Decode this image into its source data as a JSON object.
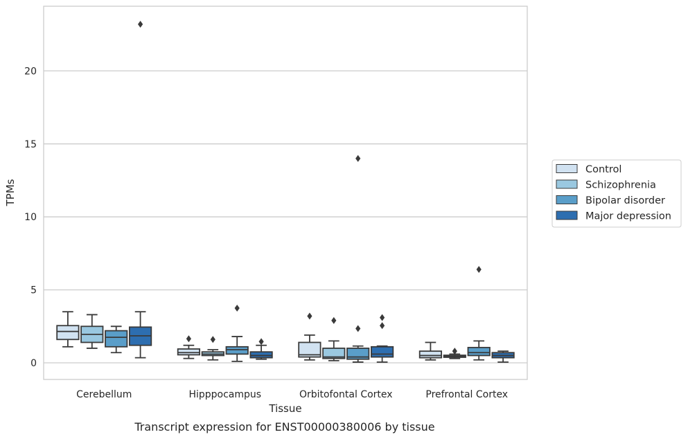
{
  "chart_data": {
    "type": "box",
    "title": "",
    "caption": "Transcript expression for ENST00000380006 by tissue",
    "xlabel": "Tissue",
    "ylabel": "TPMs",
    "ylim": [
      -1.1,
      24.5
    ],
    "yticks": [
      0,
      5,
      10,
      15,
      20
    ],
    "grid": "horizontal",
    "legend_position": "right",
    "categories": [
      "Cerebellum",
      "Hipppocampus",
      "Orbitofontal Cortex",
      "Prefrontal Cortex"
    ],
    "series": [
      {
        "name": "Control",
        "color": "#d1e2f1",
        "boxes": [
          {
            "whislo": 1.1,
            "q1": 1.6,
            "med": 2.15,
            "q3": 2.55,
            "whishi": 3.5,
            "fliers": []
          },
          {
            "whislo": 0.3,
            "q1": 0.55,
            "med": 0.7,
            "q3": 0.95,
            "whishi": 1.2,
            "fliers": [
              1.65
            ]
          },
          {
            "whislo": 0.2,
            "q1": 0.4,
            "med": 0.55,
            "q3": 1.4,
            "whishi": 1.9,
            "fliers": [
              3.2
            ]
          },
          {
            "whislo": 0.2,
            "q1": 0.35,
            "med": 0.5,
            "q3": 0.8,
            "whishi": 1.4,
            "fliers": []
          }
        ]
      },
      {
        "name": "Schizophrenia",
        "color": "#9ac8e0",
        "boxes": [
          {
            "whislo": 1.0,
            "q1": 1.4,
            "med": 1.95,
            "q3": 2.5,
            "whishi": 3.3,
            "fliers": []
          },
          {
            "whislo": 0.2,
            "q1": 0.5,
            "med": 0.6,
            "q3": 0.75,
            "whishi": 0.9,
            "fliers": [
              1.6
            ]
          },
          {
            "whislo": 0.15,
            "q1": 0.3,
            "med": 0.4,
            "q3": 1.0,
            "whishi": 1.5,
            "fliers": [
              2.9
            ]
          },
          {
            "whislo": 0.3,
            "q1": 0.38,
            "med": 0.45,
            "q3": 0.52,
            "whishi": 0.6,
            "fliers": [
              0.8
            ]
          }
        ]
      },
      {
        "name": "Bipolar disorder",
        "color": "#5a9ec9",
        "boxes": [
          {
            "whislo": 0.7,
            "q1": 1.1,
            "med": 1.75,
            "q3": 2.2,
            "whishi": 2.5,
            "fliers": []
          },
          {
            "whislo": 0.1,
            "q1": 0.6,
            "med": 0.9,
            "q3": 1.1,
            "whishi": 1.8,
            "fliers": [
              3.75
            ]
          },
          {
            "whislo": 0.05,
            "q1": 0.25,
            "med": 0.4,
            "q3": 1.0,
            "whishi": 1.15,
            "fliers": [
              2.35,
              14.0
            ]
          },
          {
            "whislo": 0.2,
            "q1": 0.5,
            "med": 0.7,
            "q3": 1.05,
            "whishi": 1.5,
            "fliers": [
              6.4
            ]
          }
        ]
      },
      {
        "name": "Major depression",
        "color": "#2d6eb0",
        "boxes": [
          {
            "whislo": 0.35,
            "q1": 1.2,
            "med": 1.85,
            "q3": 2.45,
            "whishi": 3.5,
            "fliers": [
              23.2
            ]
          },
          {
            "whislo": 0.25,
            "q1": 0.35,
            "med": 0.5,
            "q3": 0.75,
            "whishi": 1.2,
            "fliers": [
              1.45
            ]
          },
          {
            "whislo": 0.05,
            "q1": 0.4,
            "med": 0.6,
            "q3": 1.1,
            "whishi": 1.15,
            "fliers": [
              2.55,
              3.1
            ]
          },
          {
            "whislo": 0.05,
            "q1": 0.35,
            "med": 0.5,
            "q3": 0.7,
            "whishi": 0.8,
            "fliers": []
          }
        ]
      }
    ]
  }
}
